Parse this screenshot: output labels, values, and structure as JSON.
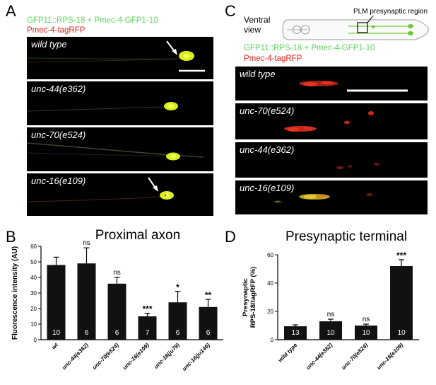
{
  "panel_a": {
    "letter": "A",
    "legend_line1": "GFP11::RPS-18 + Pmec-4-GFP1-10",
    "legend_line2": "Pmec-4-tagRFP",
    "images": [
      {
        "label": "wild type"
      },
      {
        "label": "unc-44(e362)"
      },
      {
        "label": "unc-70(e524)"
      },
      {
        "label": "unc-16(e109)"
      }
    ]
  },
  "panel_c": {
    "letter": "C",
    "view_line1": "Ventral",
    "view_line2": "view",
    "region_label": "PLM presynaptic region",
    "legend_line1": "GFP11::RPS-18 + Pmec-4-GFP1-10",
    "legend_line2": "Pmec-4-tagRFP",
    "images": [
      {
        "label": "wild type"
      },
      {
        "label": "unc-70(e524)"
      },
      {
        "label": "unc-44(e362)"
      },
      {
        "label": "unc-16(e109)"
      }
    ]
  },
  "panel_b": {
    "letter": "B",
    "title": "Proximal axon"
  },
  "panel_d": {
    "letter": "D",
    "title": "Presynaptic terminal"
  },
  "colors": {
    "gfp_green": "#5cd35a",
    "rfp_red": "#e2231a",
    "bar_fill": "#111111"
  },
  "chart_data": [
    {
      "type": "bar",
      "title": "Proximal axon",
      "xlabel": "",
      "ylabel": "Fluorescence intensity (AU)",
      "ylim": [
        0,
        60
      ],
      "yticks": [
        0,
        10,
        20,
        30,
        40,
        50,
        60
      ],
      "categories": [
        "wt",
        "unc-44(e362)",
        "unc-70(e524)",
        "unc-16(e109)",
        "unc-16(ju79)",
        "unc-16(ju146)"
      ],
      "values": [
        48,
        49,
        36,
        15,
        24,
        21
      ],
      "errors": [
        5,
        10,
        4,
        2,
        7,
        5
      ],
      "n": [
        "10",
        "6",
        "6",
        "7",
        "6",
        "6"
      ],
      "significance": [
        "",
        "ns",
        "ns",
        "***",
        "*",
        "**"
      ]
    },
    {
      "type": "bar",
      "title": "Presynaptic terminal",
      "xlabel": "",
      "ylabel_line1": "Presynaptic",
      "ylabel_line2": "RPS-18/tagRFP (%)",
      "ylim": [
        0,
        60
      ],
      "yticks": [
        0,
        20,
        40,
        60
      ],
      "categories": [
        "wild type",
        "unc-44(e362)",
        "unc-70(e524)",
        "unc-16(e109)"
      ],
      "values": [
        9.5,
        13,
        10,
        52
      ],
      "errors": [
        1,
        1.5,
        1,
        4.5
      ],
      "n": [
        "13",
        "10",
        "10",
        "10"
      ],
      "significance": [
        "",
        "ns",
        "ns",
        "***"
      ]
    }
  ]
}
